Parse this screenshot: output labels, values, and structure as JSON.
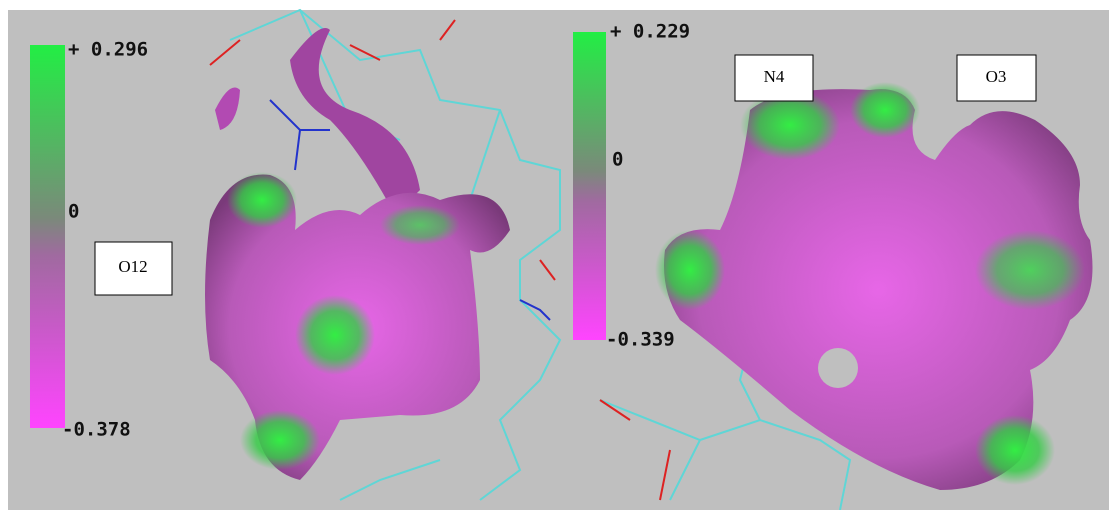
{
  "panels": [
    {
      "scale": {
        "max": "+ 0.296",
        "zero": "0",
        "min": "-0.378"
      },
      "labels": [
        "O12"
      ]
    },
    {
      "scale": {
        "max": "+ 0.229",
        "zero": "0",
        "min": "-0.339"
      },
      "labels": [
        "N4",
        "O3"
      ]
    }
  ]
}
